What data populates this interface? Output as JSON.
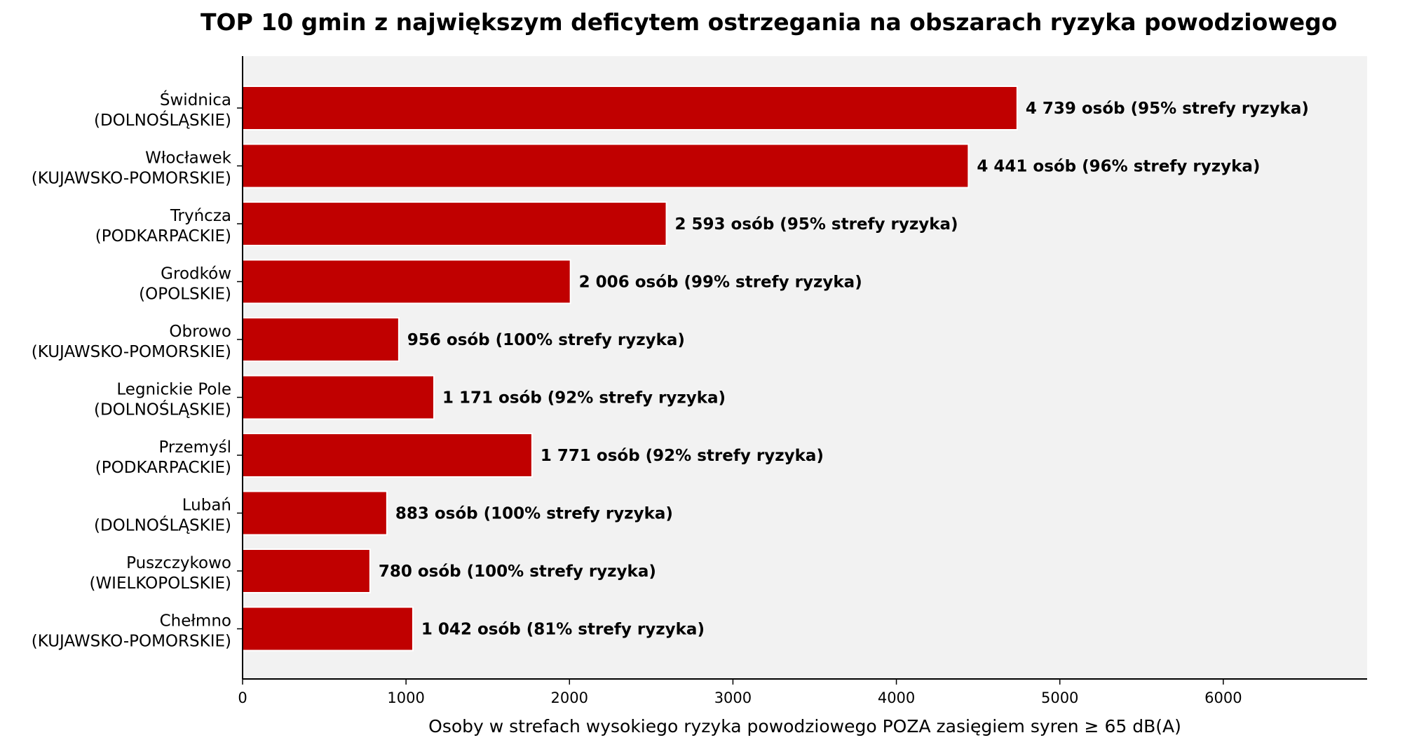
{
  "chart_data": {
    "type": "bar",
    "orientation": "horizontal",
    "title": "TOP 10 gmin z największym deficytem ostrzegania na obszarach ryzyka powodziowego",
    "xlabel": "Osoby w strefach wysokiego ryzyka powodziowego POZA zasięgiem syren ≥ 65 dB(A)",
    "ylabel": "",
    "xlim": [
      0,
      6880
    ],
    "xticks": [
      0,
      1000,
      2000,
      3000,
      4000,
      5000,
      6000
    ],
    "xtick_labels": [
      "0",
      "1000",
      "2000",
      "3000",
      "4000",
      "5000",
      "6000"
    ],
    "grid": false,
    "bar_color": "#c00000",
    "plot_background": "#f2f2f2",
    "categories": [
      {
        "name": "Świdnica",
        "region": "(DOLNOŚLĄSKIE)"
      },
      {
        "name": "Włocławek",
        "region": "(KUJAWSKO-POMORSKIE)"
      },
      {
        "name": "Tryńcza",
        "region": "(PODKARPACKIE)"
      },
      {
        "name": "Grodków",
        "region": "(OPOLSKIE)"
      },
      {
        "name": "Obrowo",
        "region": "(KUJAWSKO-POMORSKIE)"
      },
      {
        "name": "Legnickie Pole",
        "region": "(DOLNOŚLĄSKIE)"
      },
      {
        "name": "Przemyśl",
        "region": "(PODKARPACKIE)"
      },
      {
        "name": "Lubań",
        "region": "(DOLNOŚLĄSKIE)"
      },
      {
        "name": "Puszczykowo",
        "region": "(WIELKOPOLSKIE)"
      },
      {
        "name": "Chełmno",
        "region": "(KUJAWSKO-POMORSKIE)"
      }
    ],
    "values": [
      4739,
      4441,
      2593,
      2006,
      956,
      1171,
      1771,
      883,
      780,
      1042
    ],
    "data_labels": [
      "4 739 osób (95% strefy ryzyka)",
      "4 441 osób (96% strefy ryzyka)",
      "2 593 osób (95% strefy ryzyka)",
      "2 006 osób (99% strefy ryzyka)",
      "956 osób (100% strefy ryzyka)",
      "1 171 osób (92% strefy ryzyka)",
      "1 771 osób (92% strefy ryzyka)",
      "883 osób (100% strefy ryzyka)",
      "780 osób (100% strefy ryzyka)",
      "1 042 osób (81% strefy ryzyka)"
    ]
  }
}
